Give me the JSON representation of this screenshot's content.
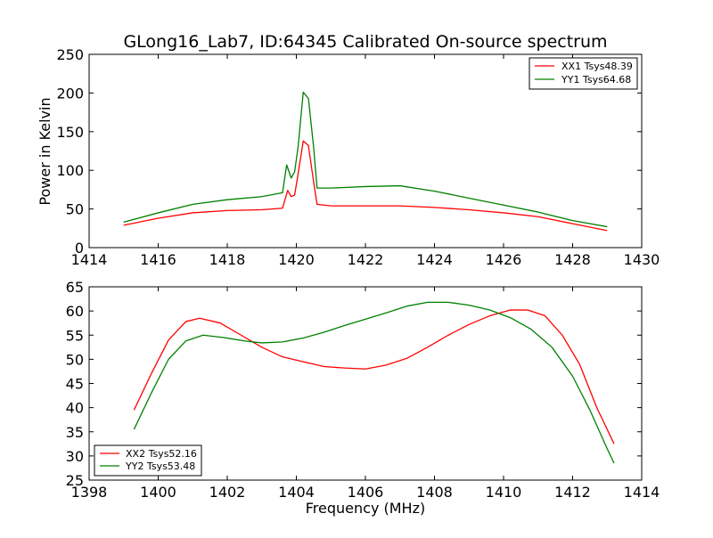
{
  "title": "GLong16_Lab7, ID:64345 Calibrated On-source spectrum",
  "chart_data": [
    {
      "type": "line",
      "ylabel": "Power in Kelvin",
      "xlabel": "",
      "xlim": [
        1414,
        1430
      ],
      "ylim": [
        0,
        250
      ],
      "xticks": [
        "1414",
        "1416",
        "1418",
        "1420",
        "1422",
        "1424",
        "1426",
        "1428",
        "1430"
      ],
      "yticks": [
        "0",
        "50",
        "100",
        "150",
        "200",
        "250"
      ],
      "legend_position": "top-right",
      "series": [
        {
          "name": "XX1 Tsys48.39",
          "color": "#ff0000",
          "points": [
            [
              1415,
              29
            ],
            [
              1416,
              38
            ],
            [
              1417,
              45
            ],
            [
              1418,
              48
            ],
            [
              1419,
              49
            ],
            [
              1419.6,
              51
            ],
            [
              1419.75,
              74
            ],
            [
              1419.85,
              66
            ],
            [
              1419.95,
              68
            ],
            [
              1420.05,
              95
            ],
            [
              1420.2,
              138
            ],
            [
              1420.35,
              132
            ],
            [
              1420.5,
              85
            ],
            [
              1420.6,
              56
            ],
            [
              1421,
              54
            ],
            [
              1422,
              54
            ],
            [
              1423,
              54
            ],
            [
              1424,
              52
            ],
            [
              1425,
              49
            ],
            [
              1426,
              45
            ],
            [
              1427,
              40
            ],
            [
              1428,
              31
            ],
            [
              1429,
              22
            ]
          ]
        },
        {
          "name": "YY1 Tsys64.68",
          "color": "#008000",
          "points": [
            [
              1415,
              33
            ],
            [
              1416,
              45
            ],
            [
              1417,
              56
            ],
            [
              1418,
              62
            ],
            [
              1419,
              66
            ],
            [
              1419.6,
              71
            ],
            [
              1419.72,
              107
            ],
            [
              1419.85,
              90
            ],
            [
              1419.95,
              98
            ],
            [
              1420.05,
              130
            ],
            [
              1420.2,
              201
            ],
            [
              1420.35,
              193
            ],
            [
              1420.5,
              130
            ],
            [
              1420.6,
              77
            ],
            [
              1421,
              77
            ],
            [
              1422,
              79
            ],
            [
              1423,
              80
            ],
            [
              1424,
              73
            ],
            [
              1425,
              64
            ],
            [
              1426,
              55
            ],
            [
              1427,
              46
            ],
            [
              1428,
              35
            ],
            [
              1429,
              27
            ]
          ]
        }
      ]
    },
    {
      "type": "line",
      "ylabel": "",
      "xlabel": "Frequency (MHz)",
      "xlim": [
        1398,
        1414
      ],
      "ylim": [
        25,
        65
      ],
      "xticks": [
        "1398",
        "1400",
        "1402",
        "1404",
        "1406",
        "1408",
        "1410",
        "1412",
        "1414"
      ],
      "yticks": [
        "25",
        "30",
        "35",
        "40",
        "45",
        "50",
        "55",
        "60",
        "65"
      ],
      "legend_position": "bottom-left",
      "series": [
        {
          "name": "XX2 Tsys52.16",
          "color": "#ff0000",
          "points": [
            [
              1399.3,
              39.5
            ],
            [
              1399.8,
              47
            ],
            [
              1400.3,
              54
            ],
            [
              1400.8,
              57.8
            ],
            [
              1401.2,
              58.5
            ],
            [
              1401.8,
              57.5
            ],
            [
              1402.4,
              55
            ],
            [
              1403,
              52.5
            ],
            [
              1403.6,
              50.5
            ],
            [
              1404.2,
              49.5
            ],
            [
              1404.8,
              48.5
            ],
            [
              1405.4,
              48.2
            ],
            [
              1406,
              48
            ],
            [
              1406.6,
              48.8
            ],
            [
              1407.2,
              50.2
            ],
            [
              1407.8,
              52.5
            ],
            [
              1408.4,
              55
            ],
            [
              1409,
              57.2
            ],
            [
              1409.6,
              59
            ],
            [
              1410.2,
              60.2
            ],
            [
              1410.7,
              60.2
            ],
            [
              1411.2,
              59
            ],
            [
              1411.7,
              55
            ],
            [
              1412.2,
              49
            ],
            [
              1412.7,
              40
            ],
            [
              1413.2,
              32.5
            ]
          ]
        },
        {
          "name": "YY2 Tsys53.48",
          "color": "#008000",
          "points": [
            [
              1399.3,
              35.5
            ],
            [
              1399.8,
              43
            ],
            [
              1400.3,
              50
            ],
            [
              1400.8,
              53.8
            ],
            [
              1401.3,
              55
            ],
            [
              1401.9,
              54.5
            ],
            [
              1402.5,
              53.8
            ],
            [
              1403,
              53.4
            ],
            [
              1403.6,
              53.6
            ],
            [
              1404.2,
              54.4
            ],
            [
              1404.8,
              55.6
            ],
            [
              1405.4,
              57
            ],
            [
              1406,
              58.3
            ],
            [
              1406.6,
              59.6
            ],
            [
              1407.2,
              61
            ],
            [
              1407.8,
              61.8
            ],
            [
              1408.4,
              61.8
            ],
            [
              1409,
              61.2
            ],
            [
              1409.6,
              60.2
            ],
            [
              1410.2,
              58.6
            ],
            [
              1410.8,
              56.2
            ],
            [
              1411.4,
              52.5
            ],
            [
              1412,
              46.5
            ],
            [
              1412.5,
              39.5
            ],
            [
              1413,
              31.5
            ],
            [
              1413.2,
              28.5
            ]
          ]
        }
      ]
    }
  ]
}
